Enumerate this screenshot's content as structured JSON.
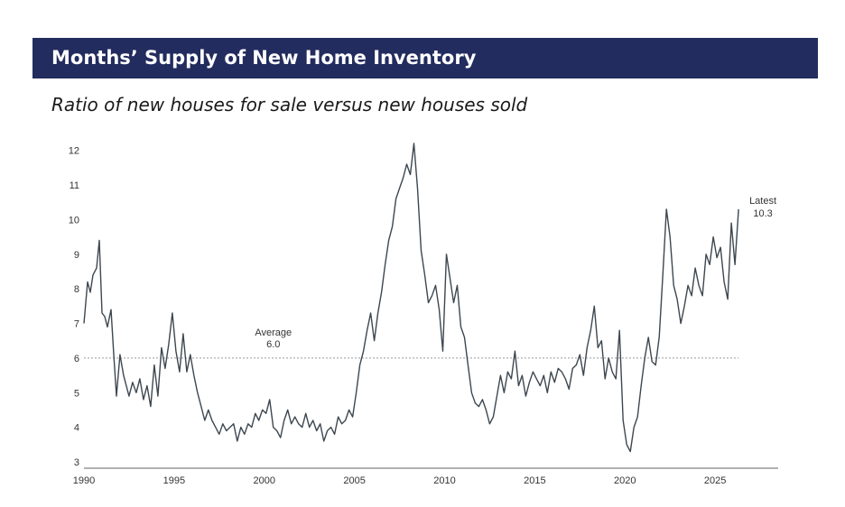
{
  "header": {
    "title": "Months’ Supply of New Home Inventory",
    "subtitle": "Ratio of new houses for sale versus new houses sold"
  },
  "colors": {
    "title_bg": "#232c5e",
    "line": "#3d4750",
    "average_line": "#9a9a9a"
  },
  "chart_data": {
    "type": "line",
    "title": "Months’ Supply of New Home Inventory",
    "subtitle": "Ratio of new houses for sale versus new houses sold",
    "xlabel": "",
    "ylabel": "",
    "xlim": [
      1990,
      2028.5
    ],
    "ylim": [
      3,
      12.2
    ],
    "x_ticks": [
      1990,
      1995,
      2000,
      2005,
      2010,
      2015,
      2020,
      2025
    ],
    "y_ticks": [
      3,
      4,
      5,
      6,
      7,
      8,
      9,
      10,
      11,
      12
    ],
    "grid": false,
    "series": [
      {
        "x": [
          1990.0,
          1990.2,
          1990.35,
          1990.5,
          1990.7,
          1990.85,
          1991.0,
          1991.15,
          1991.3,
          1991.5,
          1991.65,
          1991.8,
          1992.0,
          1992.2,
          1992.35,
          1992.5,
          1992.7,
          1992.9,
          1993.1,
          1993.3,
          1993.5,
          1993.7,
          1993.9,
          1994.1,
          1994.3,
          1994.5,
          1994.7,
          1994.9,
          1995.1,
          1995.3,
          1995.5,
          1995.7,
          1995.9,
          1996.1,
          1996.3,
          1996.5,
          1996.7,
          1996.9,
          1997.1,
          1997.3,
          1997.5,
          1997.7,
          1997.9,
          1998.1,
          1998.3,
          1998.5,
          1998.7,
          1998.9,
          1999.1,
          1999.3,
          1999.5,
          1999.7,
          1999.9,
          2000.1,
          2000.3,
          2000.5,
          2000.7,
          2000.9,
          2001.1,
          2001.3,
          2001.5,
          2001.7,
          2001.9,
          2002.1,
          2002.3,
          2002.5,
          2002.7,
          2002.9,
          2003.1,
          2003.3,
          2003.5,
          2003.7,
          2003.9,
          2004.1,
          2004.3,
          2004.5,
          2004.7,
          2004.9,
          2005.1,
          2005.3,
          2005.5,
          2005.7,
          2005.9,
          2006.1,
          2006.3,
          2006.5,
          2006.7,
          2006.9,
          2007.1,
          2007.3,
          2007.5,
          2007.7,
          2007.9,
          2008.1,
          2008.3,
          2008.5,
          2008.7,
          2008.9,
          2009.1,
          2009.3,
          2009.5,
          2009.7,
          2009.9,
          2010.1,
          2010.3,
          2010.5,
          2010.7,
          2010.9,
          2011.1,
          2011.3,
          2011.5,
          2011.7,
          2011.9,
          2012.1,
          2012.3,
          2012.5,
          2012.7,
          2012.9,
          2013.1,
          2013.3,
          2013.5,
          2013.7,
          2013.9,
          2014.1,
          2014.3,
          2014.5,
          2014.7,
          2014.9,
          2015.1,
          2015.3,
          2015.5,
          2015.7,
          2015.9,
          2016.1,
          2016.3,
          2016.5,
          2016.7,
          2016.9,
          2017.1,
          2017.3,
          2017.5,
          2017.7,
          2017.9,
          2018.1,
          2018.3,
          2018.5,
          2018.7,
          2018.9,
          2019.1,
          2019.3,
          2019.5,
          2019.7,
          2019.9,
          2020.1,
          2020.3,
          2020.5,
          2020.7,
          2020.9,
          2021.1,
          2021.3,
          2021.5,
          2021.7,
          2021.9,
          2022.1,
          2022.3,
          2022.5,
          2022.7,
          2022.9,
          2023.1,
          2023.3,
          2023.5,
          2023.7,
          2023.9,
          2024.1,
          2024.3,
          2024.5,
          2024.7,
          2024.9,
          2025.1,
          2025.3,
          2025.5,
          2025.7,
          2025.9,
          2026.1,
          2026.3
        ],
        "y": [
          7.0,
          8.2,
          7.9,
          8.4,
          8.6,
          9.4,
          7.3,
          7.2,
          6.9,
          7.4,
          6.1,
          4.9,
          6.1,
          5.5,
          5.2,
          4.9,
          5.3,
          5.0,
          5.4,
          4.8,
          5.2,
          4.6,
          5.8,
          4.9,
          6.3,
          5.7,
          6.4,
          7.3,
          6.2,
          5.6,
          6.7,
          5.6,
          6.1,
          5.5,
          5.0,
          4.6,
          4.2,
          4.5,
          4.2,
          4.0,
          3.8,
          4.1,
          3.9,
          4.0,
          4.1,
          3.6,
          4.0,
          3.8,
          4.1,
          4.0,
          4.4,
          4.2,
          4.5,
          4.4,
          4.8,
          4.0,
          3.9,
          3.7,
          4.2,
          4.5,
          4.1,
          4.3,
          4.1,
          4.0,
          4.4,
          4.0,
          4.2,
          3.9,
          4.1,
          3.6,
          3.9,
          4.0,
          3.8,
          4.3,
          4.1,
          4.2,
          4.5,
          4.3,
          5.0,
          5.8,
          6.2,
          6.8,
          7.3,
          6.5,
          7.3,
          7.9,
          8.7,
          9.4,
          9.8,
          10.6,
          10.9,
          11.2,
          11.6,
          11.3,
          12.2,
          10.9,
          9.1,
          8.4,
          7.6,
          7.8,
          8.1,
          7.4,
          6.2,
          9.0,
          8.3,
          7.6,
          8.1,
          6.9,
          6.6,
          5.8,
          5.0,
          4.7,
          4.6,
          4.8,
          4.5,
          4.1,
          4.3,
          4.9,
          5.5,
          5.0,
          5.6,
          5.4,
          6.2,
          5.2,
          5.5,
          4.9,
          5.3,
          5.6,
          5.4,
          5.2,
          5.5,
          5.0,
          5.6,
          5.3,
          5.7,
          5.6,
          5.4,
          5.1,
          5.7,
          5.8,
          6.1,
          5.5,
          6.3,
          6.8,
          7.5,
          6.3,
          6.5,
          5.4,
          6.0,
          5.6,
          5.4,
          6.8,
          4.2,
          3.5,
          3.3,
          4.0,
          4.3,
          5.2,
          6.0,
          6.6,
          5.9,
          5.8,
          6.6,
          8.4,
          10.3,
          9.5,
          8.1,
          7.7,
          7.0,
          7.5,
          8.1,
          7.8,
          8.6,
          8.1,
          7.8,
          9.0,
          8.7,
          9.5,
          8.9,
          9.2,
          8.2,
          7.7,
          9.9,
          8.7,
          10.3
        ],
        "color": "#3d4750"
      }
    ],
    "average": {
      "value": 6.0,
      "label": "Average",
      "value_label": "6.0"
    },
    "latest": {
      "x": 2026.3,
      "value": 10.3,
      "label": "Latest",
      "value_label": "10.3"
    }
  }
}
